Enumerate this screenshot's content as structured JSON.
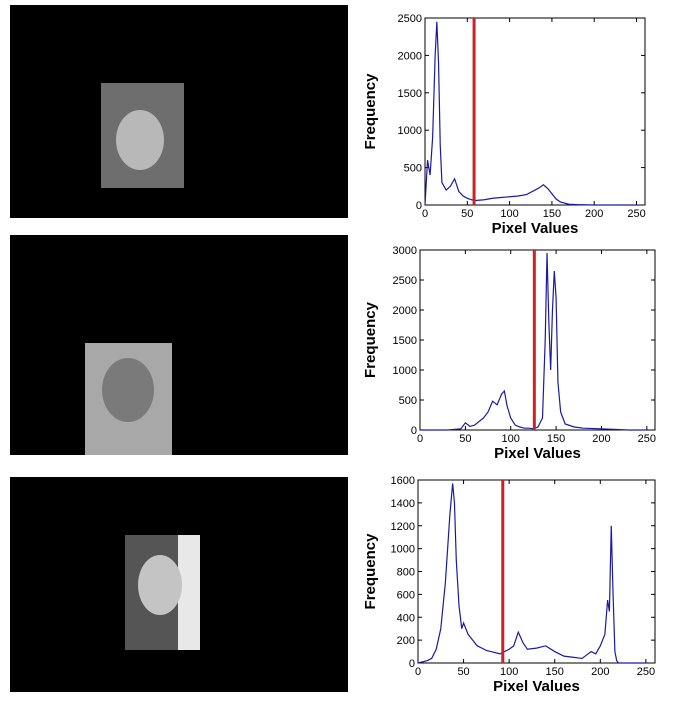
{
  "chart_data": [
    {
      "type": "line",
      "x_label": "Pixel Values",
      "y_label": "Frequency",
      "x": [
        0,
        3,
        6,
        9,
        12,
        14,
        16,
        18,
        20,
        25,
        30,
        35,
        40,
        45,
        50,
        55,
        60,
        70,
        80,
        90,
        100,
        110,
        120,
        130,
        135,
        140,
        145,
        150,
        155,
        160,
        170,
        180,
        200,
        220,
        250
      ],
      "values": [
        0,
        600,
        400,
        900,
        2000,
        2450,
        1900,
        800,
        300,
        200,
        250,
        350,
        180,
        120,
        90,
        70,
        60,
        70,
        90,
        100,
        110,
        120,
        140,
        200,
        230,
        270,
        220,
        150,
        80,
        40,
        10,
        5,
        0,
        0,
        0
      ],
      "color": "#1a1aa0",
      "threshold": 58,
      "threshold_color": "#cc2222",
      "xlim": [
        0,
        260
      ],
      "ylim": [
        0,
        2500
      ],
      "xticks": [
        0,
        50,
        100,
        150,
        200,
        250
      ],
      "yticks": [
        0,
        500,
        1000,
        1500,
        2000,
        2500
      ]
    },
    {
      "type": "line",
      "x_label": "Pixel Values",
      "y_label": "Frequency",
      "x": [
        0,
        30,
        45,
        50,
        55,
        60,
        70,
        75,
        80,
        85,
        90,
        93,
        96,
        100,
        105,
        110,
        115,
        120,
        125,
        130,
        135,
        138,
        140,
        142,
        144,
        146,
        148,
        150,
        152,
        155,
        160,
        170,
        180,
        200,
        230,
        250
      ],
      "values": [
        0,
        0,
        20,
        120,
        60,
        80,
        200,
        300,
        480,
        420,
        600,
        650,
        400,
        200,
        80,
        50,
        30,
        30,
        20,
        50,
        200,
        1500,
        2950,
        1800,
        1000,
        2000,
        2650,
        2200,
        800,
        300,
        100,
        50,
        30,
        20,
        0,
        0
      ],
      "color": "#1a1aa0",
      "threshold": 126,
      "threshold_color": "#cc2222",
      "xlim": [
        0,
        259
      ],
      "ylim": [
        0,
        3000
      ],
      "xticks": [
        0,
        50,
        100,
        150,
        200,
        250
      ],
      "yticks": [
        0,
        500,
        1000,
        1500,
        2000,
        2500,
        3000
      ]
    },
    {
      "type": "line",
      "x_label": "Pixel Values",
      "y_label": "Frequency",
      "x": [
        0,
        5,
        10,
        15,
        20,
        25,
        30,
        35,
        38,
        40,
        42,
        45,
        48,
        50,
        55,
        60,
        65,
        70,
        75,
        80,
        90,
        100,
        105,
        110,
        115,
        120,
        130,
        140,
        150,
        160,
        170,
        180,
        190,
        195,
        200,
        205,
        208,
        210,
        212,
        214,
        216,
        218,
        220,
        230,
        250
      ],
      "values": [
        0,
        10,
        20,
        40,
        120,
        300,
        700,
        1300,
        1570,
        1400,
        900,
        500,
        300,
        350,
        250,
        200,
        150,
        130,
        110,
        100,
        80,
        120,
        150,
        270,
        180,
        120,
        130,
        150,
        100,
        60,
        50,
        40,
        100,
        80,
        150,
        250,
        550,
        450,
        1200,
        600,
        100,
        20,
        0,
        0,
        0
      ],
      "color": "#1a1aa0",
      "threshold": 93,
      "threshold_color": "#cc2222",
      "xlim": [
        0,
        260
      ],
      "ylim": [
        0,
        1600
      ],
      "xticks": [
        0,
        50,
        100,
        150,
        200,
        250
      ],
      "yticks": [
        0,
        200,
        400,
        600,
        800,
        1000,
        1200,
        1400,
        1600
      ]
    }
  ]
}
